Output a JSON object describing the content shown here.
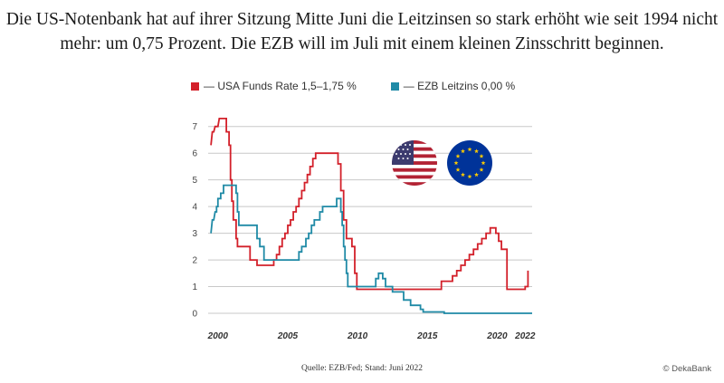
{
  "headline": {
    "line1": "Die US-Notenbank hat auf ihrer Sitzung Mitte Juni die Leitzinsen so stark erhöht wie seit 1994 nicht",
    "line2": "mehr: um 0,75 Prozent. Die EZB will im Juli mit einem kleinen Zinsschritt beginnen."
  },
  "source": "Quelle: EZB/Fed; Stand: Juni 2022",
  "copyright": "© DekaBank",
  "colors": {
    "us": "#d3202a",
    "ezb": "#1f8aa6",
    "grid": "#c8c8c8"
  },
  "chart_data": {
    "type": "line",
    "title": "",
    "xlabel": "",
    "ylabel": "",
    "xlim": [
      1999.3,
      2022.5
    ],
    "ylim": [
      0,
      7.5
    ],
    "x_ticks": [
      {
        "value": 2000,
        "label": "2000"
      },
      {
        "value": 2005,
        "label": "2005"
      },
      {
        "value": 2010,
        "label": "2010"
      },
      {
        "value": 2015,
        "label": "2015"
      },
      {
        "value": 2020,
        "label": "2020"
      },
      {
        "value": 2022,
        "label": "2022"
      }
    ],
    "y_ticks": [
      0,
      1,
      2,
      3,
      4,
      5,
      6,
      7
    ],
    "grid": true,
    "legend_position": "top",
    "series": [
      {
        "name": "— USA Funds Rate 1,5–1,75 %",
        "color": "#d3202a",
        "points": [
          [
            1999.5,
            6.3
          ],
          [
            1999.6,
            6.8
          ],
          [
            1999.7,
            6.8
          ],
          [
            1999.8,
            7.0
          ],
          [
            2000.0,
            7.0
          ],
          [
            2000.1,
            7.3
          ],
          [
            2000.2,
            7.3
          ],
          [
            2000.6,
            7.3
          ],
          [
            2000.6,
            6.8
          ],
          [
            2000.8,
            6.8
          ],
          [
            2000.8,
            6.3
          ],
          [
            2000.9,
            6.3
          ],
          [
            2000.9,
            5.0
          ],
          [
            2001.0,
            5.0
          ],
          [
            2001.0,
            4.2
          ],
          [
            2001.1,
            4.2
          ],
          [
            2001.1,
            3.5
          ],
          [
            2001.3,
            3.5
          ],
          [
            2001.3,
            2.8
          ],
          [
            2001.4,
            2.8
          ],
          [
            2001.4,
            2.5
          ],
          [
            2002.3,
            2.5
          ],
          [
            2002.3,
            2.0
          ],
          [
            2002.8,
            2.0
          ],
          [
            2002.8,
            1.8
          ],
          [
            2004.0,
            1.8
          ],
          [
            2004.0,
            2.0
          ],
          [
            2004.2,
            2.0
          ],
          [
            2004.2,
            2.2
          ],
          [
            2004.4,
            2.2
          ],
          [
            2004.4,
            2.5
          ],
          [
            2004.6,
            2.5
          ],
          [
            2004.6,
            2.8
          ],
          [
            2004.8,
            2.8
          ],
          [
            2004.8,
            3.0
          ],
          [
            2005.0,
            3.0
          ],
          [
            2005.0,
            3.3
          ],
          [
            2005.2,
            3.3
          ],
          [
            2005.2,
            3.5
          ],
          [
            2005.4,
            3.5
          ],
          [
            2005.4,
            3.8
          ],
          [
            2005.6,
            3.8
          ],
          [
            2005.6,
            4.0
          ],
          [
            2005.8,
            4.0
          ],
          [
            2005.8,
            4.3
          ],
          [
            2006.0,
            4.3
          ],
          [
            2006.0,
            4.6
          ],
          [
            2006.2,
            4.6
          ],
          [
            2006.2,
            4.9
          ],
          [
            2006.4,
            4.9
          ],
          [
            2006.4,
            5.2
          ],
          [
            2006.6,
            5.2
          ],
          [
            2006.6,
            5.5
          ],
          [
            2006.8,
            5.5
          ],
          [
            2006.8,
            5.8
          ],
          [
            2007.0,
            5.8
          ],
          [
            2007.0,
            6.0
          ],
          [
            2008.6,
            6.0
          ],
          [
            2008.6,
            5.6
          ],
          [
            2008.8,
            5.6
          ],
          [
            2008.8,
            4.6
          ],
          [
            2009.0,
            4.6
          ],
          [
            2009.0,
            3.5
          ],
          [
            2009.2,
            3.5
          ],
          [
            2009.2,
            2.8
          ],
          [
            2009.6,
            2.8
          ],
          [
            2009.6,
            2.5
          ],
          [
            2009.8,
            2.5
          ],
          [
            2009.8,
            1.5
          ],
          [
            2009.95,
            1.5
          ],
          [
            2009.95,
            0.9
          ],
          [
            2016.0,
            0.9
          ],
          [
            2016.0,
            1.2
          ],
          [
            2016.8,
            1.2
          ],
          [
            2016.8,
            1.4
          ],
          [
            2017.1,
            1.4
          ],
          [
            2017.1,
            1.6
          ],
          [
            2017.4,
            1.6
          ],
          [
            2017.4,
            1.8
          ],
          [
            2017.7,
            1.8
          ],
          [
            2017.7,
            2.0
          ],
          [
            2018.0,
            2.0
          ],
          [
            2018.0,
            2.2
          ],
          [
            2018.3,
            2.2
          ],
          [
            2018.3,
            2.4
          ],
          [
            2018.6,
            2.4
          ],
          [
            2018.6,
            2.6
          ],
          [
            2018.9,
            2.6
          ],
          [
            2018.9,
            2.8
          ],
          [
            2019.2,
            2.8
          ],
          [
            2019.2,
            3.0
          ],
          [
            2019.5,
            3.0
          ],
          [
            2019.5,
            3.2
          ],
          [
            2019.9,
            3.2
          ],
          [
            2019.9,
            3.0
          ],
          [
            2020.1,
            3.0
          ],
          [
            2020.1,
            2.7
          ],
          [
            2020.3,
            2.7
          ],
          [
            2020.3,
            2.4
          ],
          [
            2020.7,
            2.4
          ],
          [
            2020.7,
            0.9
          ],
          [
            2022.0,
            0.9
          ],
          [
            2022.0,
            1.0
          ],
          [
            2022.2,
            1.0
          ],
          [
            2022.2,
            1.6
          ]
        ]
      },
      {
        "name": "— EZB Leitzins 0,00 %",
        "color": "#1f8aa6",
        "points": [
          [
            1999.5,
            3.0
          ],
          [
            1999.6,
            3.5
          ],
          [
            1999.7,
            3.5
          ],
          [
            1999.8,
            3.8
          ],
          [
            1999.9,
            3.8
          ],
          [
            1999.9,
            4.0
          ],
          [
            2000.0,
            4.0
          ],
          [
            2000.0,
            4.3
          ],
          [
            2000.2,
            4.3
          ],
          [
            2000.2,
            4.5
          ],
          [
            2000.4,
            4.5
          ],
          [
            2000.4,
            4.8
          ],
          [
            2001.3,
            4.8
          ],
          [
            2001.3,
            4.5
          ],
          [
            2001.4,
            4.5
          ],
          [
            2001.4,
            3.8
          ],
          [
            2001.5,
            3.8
          ],
          [
            2001.5,
            3.3
          ],
          [
            2002.8,
            3.3
          ],
          [
            2002.8,
            2.8
          ],
          [
            2003.0,
            2.8
          ],
          [
            2003.0,
            2.5
          ],
          [
            2003.3,
            2.5
          ],
          [
            2003.3,
            2.0
          ],
          [
            2005.8,
            2.0
          ],
          [
            2005.8,
            2.3
          ],
          [
            2006.0,
            2.3
          ],
          [
            2006.0,
            2.5
          ],
          [
            2006.3,
            2.5
          ],
          [
            2006.3,
            2.8
          ],
          [
            2006.5,
            2.8
          ],
          [
            2006.5,
            3.0
          ],
          [
            2006.7,
            3.0
          ],
          [
            2006.7,
            3.3
          ],
          [
            2006.9,
            3.3
          ],
          [
            2006.9,
            3.5
          ],
          [
            2007.3,
            3.5
          ],
          [
            2007.3,
            3.8
          ],
          [
            2007.5,
            3.8
          ],
          [
            2007.5,
            4.0
          ],
          [
            2008.5,
            4.0
          ],
          [
            2008.5,
            4.3
          ],
          [
            2008.8,
            4.3
          ],
          [
            2008.8,
            3.8
          ],
          [
            2008.9,
            3.8
          ],
          [
            2008.9,
            3.3
          ],
          [
            2009.0,
            3.3
          ],
          [
            2009.0,
            2.5
          ],
          [
            2009.1,
            2.5
          ],
          [
            2009.1,
            2.0
          ],
          [
            2009.2,
            2.0
          ],
          [
            2009.2,
            1.5
          ],
          [
            2009.3,
            1.5
          ],
          [
            2009.3,
            1.0
          ],
          [
            2011.3,
            1.0
          ],
          [
            2011.3,
            1.3
          ],
          [
            2011.5,
            1.3
          ],
          [
            2011.5,
            1.5
          ],
          [
            2011.8,
            1.5
          ],
          [
            2011.8,
            1.3
          ],
          [
            2012.0,
            1.3
          ],
          [
            2012.0,
            1.0
          ],
          [
            2012.5,
            1.0
          ],
          [
            2012.5,
            0.8
          ],
          [
            2013.3,
            0.8
          ],
          [
            2013.3,
            0.5
          ],
          [
            2013.8,
            0.5
          ],
          [
            2013.8,
            0.3
          ],
          [
            2014.5,
            0.3
          ],
          [
            2014.5,
            0.15
          ],
          [
            2014.7,
            0.15
          ],
          [
            2014.7,
            0.05
          ],
          [
            2016.2,
            0.05
          ],
          [
            2016.2,
            0.0
          ],
          [
            2022.5,
            0.0
          ]
        ]
      }
    ]
  }
}
